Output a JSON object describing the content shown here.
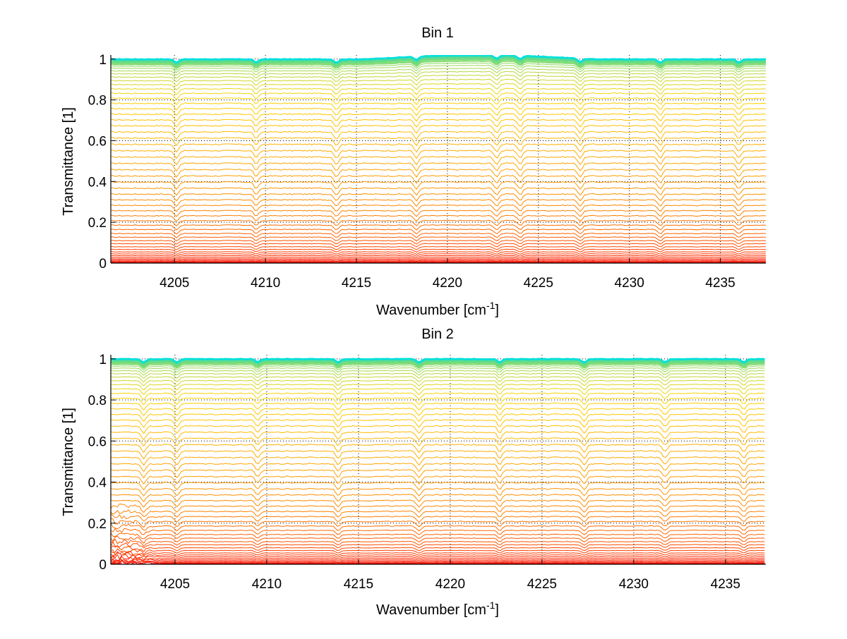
{
  "chart_data": [
    {
      "type": "line",
      "title": "Bin 1",
      "xlabel": "Wavenumber [cm",
      "xlabel_sup": "-1",
      "xlabel_end": "]",
      "ylabel": "Transmittance [1]",
      "xlim": [
        4201.5,
        4237.5
      ],
      "ylim": [
        0,
        1.02
      ],
      "x_ticks": [
        "4205",
        "4210",
        "4215",
        "4220",
        "4225",
        "4230",
        "4235"
      ],
      "y_ticks": [
        "0",
        "0.2",
        "0.4",
        "0.6",
        "0.8",
        "1"
      ],
      "grid": true,
      "legend": "none",
      "n_curves": 60,
      "color_ramp": [
        "#ff0000",
        "#ff8000",
        "#ffd400",
        "#00e0e0"
      ],
      "curve_baseline_values": [
        0.0,
        0.003,
        0.006,
        0.01,
        0.015,
        0.021,
        0.028,
        0.036,
        0.045,
        0.055,
        0.067,
        0.08,
        0.095,
        0.11,
        0.127,
        0.145,
        0.165,
        0.186,
        0.208,
        0.232,
        0.257,
        0.283,
        0.31,
        0.338,
        0.367,
        0.397,
        0.427,
        0.458,
        0.489,
        0.52,
        0.551,
        0.582,
        0.613,
        0.643,
        0.673,
        0.702,
        0.73,
        0.757,
        0.783,
        0.808,
        0.832,
        0.854,
        0.875,
        0.894,
        0.912,
        0.928,
        0.942,
        0.955,
        0.965,
        0.974,
        0.981,
        0.987,
        0.991,
        0.994,
        0.996,
        0.997,
        0.998,
        0.999,
        1.0,
        1.0
      ],
      "absorption_lines_x": [
        4205.1,
        4209.5,
        4213.9,
        4218.3,
        4222.7,
        4224.0,
        4227.3,
        4231.7,
        4236.0
      ],
      "hump": {
        "x_start": 4215.5,
        "x_end": 4228.0,
        "peak": 1.02
      }
    },
    {
      "type": "line",
      "title": "Bin 2",
      "xlabel": "Wavenumber [cm",
      "xlabel_sup": "-1",
      "xlabel_end": "]",
      "ylabel": "Transmittance [1]",
      "xlim": [
        4201.5,
        4237.2
      ],
      "ylim": [
        0,
        1.02
      ],
      "x_ticks": [
        "4205",
        "4210",
        "4215",
        "4220",
        "4225",
        "4230",
        "4235"
      ],
      "y_ticks": [
        "0",
        "0.2",
        "0.4",
        "0.6",
        "0.8",
        "1"
      ],
      "grid": true,
      "legend": "none",
      "n_curves": 60,
      "color_ramp": [
        "#ff0000",
        "#ff8000",
        "#ffd400",
        "#00e0e0"
      ],
      "curve_baseline_values": [
        0.0,
        0.003,
        0.006,
        0.01,
        0.015,
        0.021,
        0.028,
        0.036,
        0.045,
        0.055,
        0.067,
        0.08,
        0.095,
        0.11,
        0.127,
        0.145,
        0.165,
        0.186,
        0.208,
        0.232,
        0.257,
        0.283,
        0.31,
        0.338,
        0.367,
        0.397,
        0.427,
        0.458,
        0.489,
        0.52,
        0.551,
        0.582,
        0.613,
        0.643,
        0.673,
        0.702,
        0.73,
        0.757,
        0.783,
        0.808,
        0.832,
        0.854,
        0.875,
        0.894,
        0.912,
        0.928,
        0.942,
        0.955,
        0.965,
        0.974,
        0.981,
        0.987,
        0.991,
        0.994,
        0.996,
        0.997,
        0.998,
        0.999,
        1.0,
        1.0
      ],
      "absorption_lines_x": [
        4203.3,
        4205.1,
        4209.5,
        4213.9,
        4218.3,
        4222.7,
        4227.3,
        4231.7,
        4236.0
      ],
      "hump": null
    }
  ]
}
